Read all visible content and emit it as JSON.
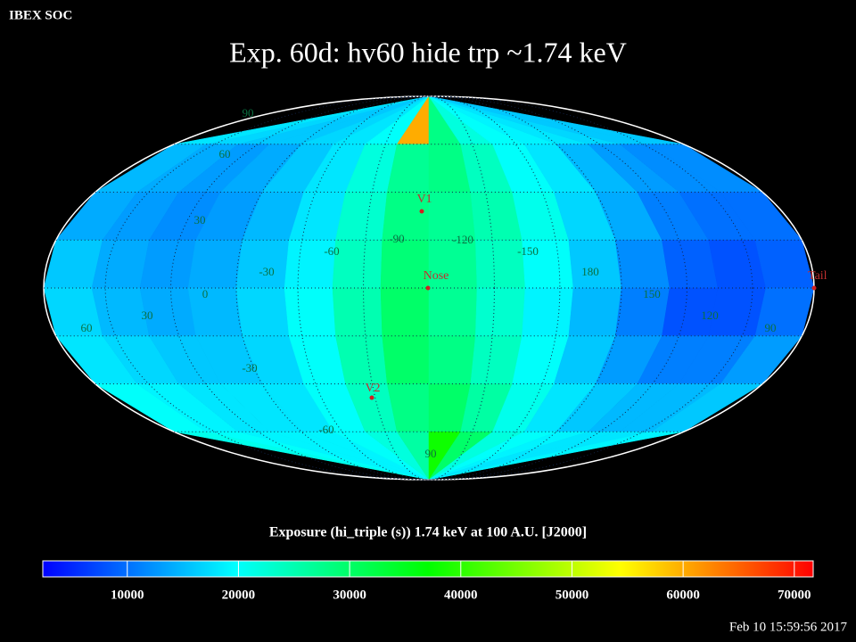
{
  "header": "IBEX SOC",
  "title": "Exp.   60d: hv60 hide trp ~1.74 keV",
  "timestamp": "Feb 10 15:59:56 2017",
  "chart_data": {
    "type": "skymap",
    "colorbar_label": "Exposure (hi_triple (s))  1.74 keV at 100 A.U. [J2000]",
    "colorbar_range": [
      2400,
      71700
    ],
    "colorbar_ticks": [
      10000,
      20000,
      30000,
      40000,
      50000,
      60000,
      70000
    ],
    "colormap": [
      "#0000ff",
      "#00ffff",
      "#00ff00",
      "#ffff00",
      "#ff0000"
    ],
    "grid_labels": [
      90,
      60,
      30,
      0,
      30,
      60,
      -30,
      -60,
      -90,
      -120,
      -150,
      180,
      150,
      120,
      90,
      -30,
      -60,
      90
    ],
    "markers": [
      "V1",
      "Nose",
      "V2",
      "Tail"
    ],
    "values": [
      [
        18000,
        17000,
        16000,
        16000,
        17000,
        18000,
        20000,
        60000,
        28000,
        22000,
        20000,
        19000,
        18000,
        17000,
        16000,
        16000
      ],
      [
        15000,
        14000,
        13000,
        14000,
        16000,
        18000,
        22000,
        27000,
        28000,
        24000,
        20000,
        18000,
        15000,
        13000,
        12000,
        12000
      ],
      [
        14000,
        13000,
        12000,
        13000,
        15000,
        18000,
        23000,
        28000,
        27000,
        25000,
        21000,
        17000,
        14000,
        11000,
        10000,
        10000
      ],
      [
        16000,
        14000,
        13000,
        14000,
        16000,
        19000,
        24000,
        29000,
        27000,
        24000,
        20000,
        16000,
        12000,
        9000,
        8000,
        9000
      ],
      [
        17000,
        15000,
        14000,
        15000,
        17000,
        20000,
        25000,
        30000,
        27000,
        23000,
        19000,
        15000,
        11000,
        8000,
        8000,
        10000
      ],
      [
        18000,
        17000,
        16000,
        16000,
        17000,
        20000,
        25000,
        30000,
        28000,
        24000,
        20000,
        16000,
        13000,
        11000,
        11000,
        13000
      ],
      [
        20000,
        19000,
        18000,
        18000,
        18000,
        20000,
        24000,
        28000,
        30000,
        26000,
        21000,
        18000,
        16000,
        15000,
        15000,
        16000
      ],
      [
        21000,
        20000,
        19000,
        19000,
        19000,
        20000,
        22000,
        26000,
        38000,
        30000,
        22000,
        20000,
        19000,
        18000,
        18000,
        19000
      ]
    ]
  }
}
